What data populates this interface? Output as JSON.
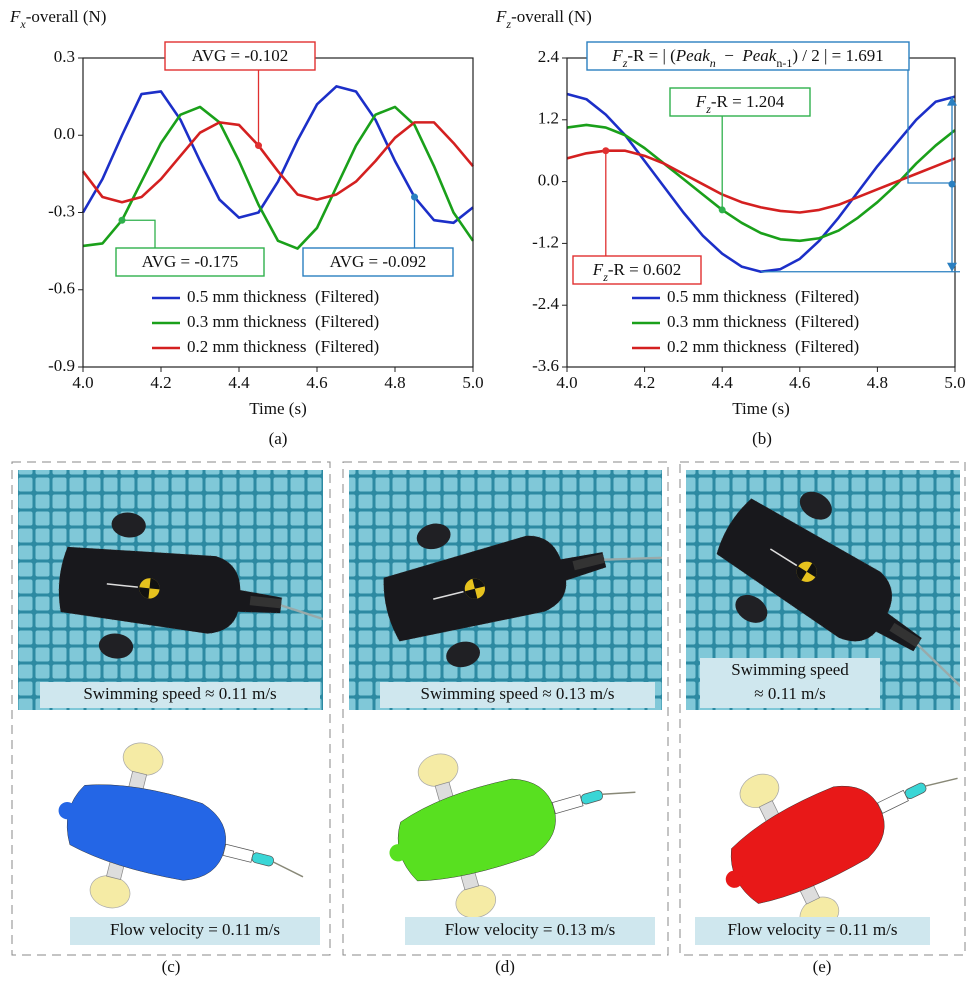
{
  "chart_data": [
    {
      "type": "line",
      "label": "(a)",
      "ylabel": [
        {
          "text": "F",
          "italic": true
        },
        {
          "text": "x",
          "italic": true,
          "sub": true
        },
        {
          "text": "-overall (N)"
        }
      ],
      "xlabel": "Time (s)",
      "x": [
        4.0,
        4.05,
        4.1,
        4.15,
        4.2,
        4.25,
        4.3,
        4.35,
        4.4,
        4.45,
        4.5,
        4.55,
        4.6,
        4.65,
        4.7,
        4.75,
        4.8,
        4.85,
        4.9,
        4.95,
        5.0
      ],
      "xlim": [
        4.0,
        5.0
      ],
      "xticks": [
        {
          "value": 4.0,
          "label": "4.0"
        },
        4.2,
        4.4,
        4.6,
        4.8,
        {
          "value": 5.0,
          "label": "5.0"
        }
      ],
      "ylim": [
        -0.9,
        0.3
      ],
      "yticks": [
        -0.9,
        -0.6,
        -0.3,
        {
          "value": 0,
          "label": "0.0"
        },
        0.3
      ],
      "series": [
        {
          "name": "0.5 mm thickness  (Filtered)",
          "color": "#1c2fc8",
          "values": [
            -0.3,
            -0.17,
            0.0,
            0.16,
            0.17,
            0.06,
            -0.1,
            -0.25,
            -0.32,
            -0.3,
            -0.18,
            -0.02,
            0.12,
            0.19,
            0.17,
            0.06,
            -0.1,
            -0.24,
            -0.33,
            -0.34,
            -0.28
          ]
        },
        {
          "name": "0.3 mm thickness  (Filtered)",
          "color": "#1aa01a",
          "values": [
            -0.43,
            -0.42,
            -0.33,
            -0.18,
            -0.03,
            0.08,
            0.11,
            0.05,
            -0.1,
            -0.27,
            -0.41,
            -0.44,
            -0.36,
            -0.2,
            -0.04,
            0.08,
            0.11,
            0.04,
            -0.12,
            -0.3,
            -0.41
          ]
        },
        {
          "name": "0.2 mm thickness  (Filtered)",
          "color": "#d42020",
          "values": [
            -0.14,
            -0.24,
            -0.26,
            -0.24,
            -0.17,
            -0.08,
            0.01,
            0.05,
            0.04,
            -0.04,
            -0.14,
            -0.23,
            -0.25,
            -0.23,
            -0.18,
            -0.1,
            -0.01,
            0.05,
            0.05,
            -0.03,
            -0.12
          ]
        }
      ],
      "annotations": [
        {
          "color": "#e03030",
          "parts": [
            {
              "text": "AVG = -0.102"
            }
          ]
        },
        {
          "color": "#2fb04c",
          "parts": [
            {
              "text": "AVG = -0.175"
            }
          ]
        },
        {
          "color": "#2a7fc0",
          "parts": [
            {
              "text": "AVG = -0.092"
            }
          ]
        }
      ]
    },
    {
      "type": "line",
      "label": "(b)",
      "ylabel": [
        {
          "text": "F",
          "italic": true
        },
        {
          "text": "z",
          "italic": true,
          "sub": true
        },
        {
          "text": "-overall (N)"
        }
      ],
      "xlabel": "Time (s)",
      "x": [
        4.0,
        4.05,
        4.1,
        4.15,
        4.2,
        4.25,
        4.3,
        4.35,
        4.4,
        4.45,
        4.5,
        4.55,
        4.6,
        4.65,
        4.7,
        4.75,
        4.8,
        4.85,
        4.9,
        4.95,
        5.0
      ],
      "xlim": [
        4.0,
        5.0
      ],
      "xticks": [
        {
          "value": 4.0,
          "label": "4.0"
        },
        4.2,
        4.4,
        4.6,
        4.8,
        {
          "value": 5.0,
          "label": "5.0"
        }
      ],
      "ylim": [
        -3.6,
        2.4
      ],
      "yticks": [
        -3.6,
        -2.4,
        -1.2,
        {
          "value": 0,
          "label": "0.0"
        },
        1.2,
        2.4
      ],
      "series": [
        {
          "name": "0.5 mm thickness  (Filtered)",
          "color": "#1c2fc8",
          "values": [
            1.7,
            1.6,
            1.3,
            0.9,
            0.4,
            -0.1,
            -0.6,
            -1.05,
            -1.4,
            -1.65,
            -1.75,
            -1.7,
            -1.5,
            -1.15,
            -0.7,
            -0.2,
            0.3,
            0.75,
            1.2,
            1.55,
            1.65
          ]
        },
        {
          "name": "0.3 mm thickness  (Filtered)",
          "color": "#1aa01a",
          "values": [
            1.05,
            1.1,
            1.05,
            0.9,
            0.65,
            0.35,
            0.05,
            -0.25,
            -0.55,
            -0.8,
            -1.0,
            -1.12,
            -1.15,
            -1.1,
            -0.95,
            -0.7,
            -0.4,
            -0.05,
            0.35,
            0.7,
            1.0
          ]
        },
        {
          "name": "0.2 mm thickness  (Filtered)",
          "color": "#d42020",
          "values": [
            0.45,
            0.55,
            0.6,
            0.6,
            0.5,
            0.35,
            0.15,
            -0.05,
            -0.25,
            -0.4,
            -0.5,
            -0.57,
            -0.6,
            -0.55,
            -0.45,
            -0.3,
            -0.15,
            0.0,
            0.15,
            0.3,
            0.45
          ]
        }
      ],
      "annotations": [
        {
          "color": "#e03030",
          "parts": [
            {
              "text": "F",
              "italic": true
            },
            {
              "text": "z",
              "italic": true,
              "sub": true
            },
            {
              "text": "-R = 0.602"
            }
          ]
        },
        {
          "color": "#2fb04c",
          "parts": [
            {
              "text": "F",
              "italic": true
            },
            {
              "text": "z",
              "italic": true,
              "sub": true
            },
            {
              "text": "-R = 1.204"
            }
          ]
        },
        {
          "color": "#2a7fc0",
          "parts": [
            {
              "text": "F",
              "italic": true
            },
            {
              "text": "z",
              "italic": true,
              "sub": true
            },
            {
              "text": "-R = | ("
            },
            {
              "text": "Peak",
              "italic": true
            },
            {
              "text": "n",
              "italic": true,
              "sub": true
            },
            {
              "text": "  −  "
            },
            {
              "text": "Peak",
              "italic": true
            },
            {
              "text": "n-1",
              "sub": true
            },
            {
              "text": ") / 2 | = 1.691"
            }
          ]
        }
      ]
    }
  ],
  "panels": [
    {
      "label": "(c)",
      "photo_caption": [
        "Swimming speed ≈ 0.11 m/s"
      ],
      "render_caption": "Flow velocity = 0.11 m/s"
    },
    {
      "label": "(d)",
      "photo_caption": [
        "Swimming speed ≈ 0.13 m/s"
      ],
      "render_caption": "Flow velocity = 0.13 m/s"
    },
    {
      "label": "(e)",
      "photo_caption": [
        "Swimming speed",
        "≈ 0.11 m/s"
      ],
      "render_caption": "Flow velocity = 0.11 m/s"
    }
  ]
}
